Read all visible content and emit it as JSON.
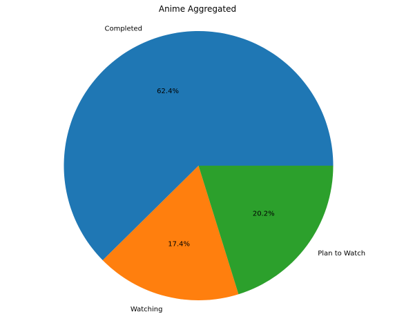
{
  "chart_data": {
    "type": "pie",
    "title": "Anime Aggregated",
    "categories": [
      "Completed",
      "Watching",
      "Plan to Watch"
    ],
    "values": [
      62.4,
      17.4,
      20.2
    ],
    "value_labels": [
      "62.4%",
      "17.4%",
      "20.2%"
    ],
    "colors": [
      "#1f77b4",
      "#ff7f0e",
      "#2ca02c"
    ],
    "start_angle": 0,
    "direction": "counterclockwise",
    "legend": "none"
  }
}
